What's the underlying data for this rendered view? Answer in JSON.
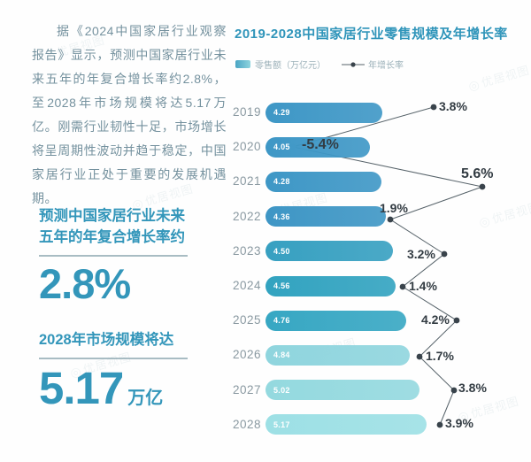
{
  "left_panel": {
    "paragraph": "据《2024中国家居行业观察报告》显示，预测中国家居行业未来五年的年复合增长率约2.8%，至2028年市场规模将达5.17万亿。刚需行业韧性十足，市场增长将呈周期性波动并趋于稳定，中国家居行业正处于重要的发展机遇期。",
    "highlight1": {
      "label": "预测中国家居行业未来五年的年复合增长率约",
      "value": "2.8%"
    },
    "highlight2": {
      "label": "2028年市场规模将达",
      "value": "5.17",
      "unit": "万亿"
    }
  },
  "chart": {
    "title": "2019-2028中国家居行业零售规模及年增长率",
    "legend_bar": "零售额（万亿元）",
    "legend_line": "年增长率"
  },
  "chart_data": {
    "type": "bar",
    "orientation": "horizontal",
    "title": "2019-2028中国家居行业零售规模及年增长率",
    "categories": [
      "2019",
      "2020",
      "2021",
      "2022",
      "2023",
      "2024",
      "2025",
      "2026",
      "2027",
      "2028"
    ],
    "series": [
      {
        "name": "零售额（万亿元）",
        "values": [
          4.29,
          4.05,
          4.28,
          4.36,
          4.5,
          4.56,
          4.76,
          4.84,
          5.02,
          5.17
        ]
      },
      {
        "name": "年增长率",
        "values": [
          3.8,
          -5.4,
          5.6,
          1.9,
          3.2,
          1.4,
          4.2,
          1.7,
          3.8,
          3.9
        ],
        "unit": "%"
      }
    ],
    "value_labels": [
      "4.29",
      "4.05",
      "4.28",
      "4.36",
      "4.50",
      "4.56",
      "4.76",
      "4.84",
      "5.02",
      "5.17"
    ],
    "growth_labels": [
      "3.8%",
      "-5.4%",
      "5.6%",
      "1.9%",
      "3.2%",
      "1.4%",
      "4.2%",
      "1.7%",
      "3.8%",
      "3.9%"
    ],
    "bar_colors": [
      "#3e97c6",
      "#3e97c6",
      "#3e97c6",
      "#3e96c5",
      "#37a0c1",
      "#32a3c0",
      "#37a7c3",
      "#8fd5de",
      "#94d9df",
      "#9de0e5"
    ],
    "legend_position": "top-left",
    "grid": false
  },
  "watermark": {
    "text": "优居视图",
    "ring": "◎"
  },
  "colors": {
    "accent_teal": "#3396ba",
    "paragraph_gray": "#74919e",
    "growth_line": "#566269",
    "growth_dot": "#39434b",
    "growth_dot_2020": "#e3edf0"
  }
}
